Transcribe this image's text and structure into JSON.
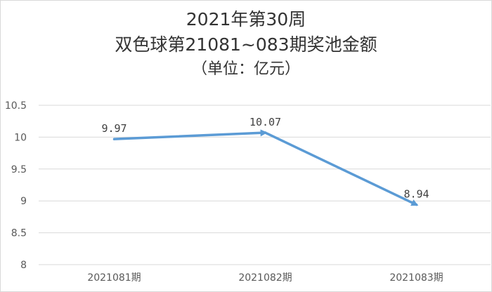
{
  "chart_data": {
    "type": "line",
    "title": "2021年第30周",
    "subtitle": "双色球第21081~083期奖池金额",
    "unit_note": "（单位：亿元）",
    "categories": [
      "2021081期",
      "2021082期",
      "2021083期"
    ],
    "series": [
      {
        "values": [
          9.97,
          10.07,
          8.94
        ],
        "labels": [
          "9.97",
          "10.07",
          "8.94"
        ]
      }
    ],
    "yticks": [
      "10.5",
      "10",
      "9.5",
      "9",
      "8.5",
      "8"
    ],
    "ylim": [
      8,
      10.5
    ],
    "grid": true,
    "line_color": "#5b9bd5",
    "grid_color": "#d9d9d9"
  }
}
